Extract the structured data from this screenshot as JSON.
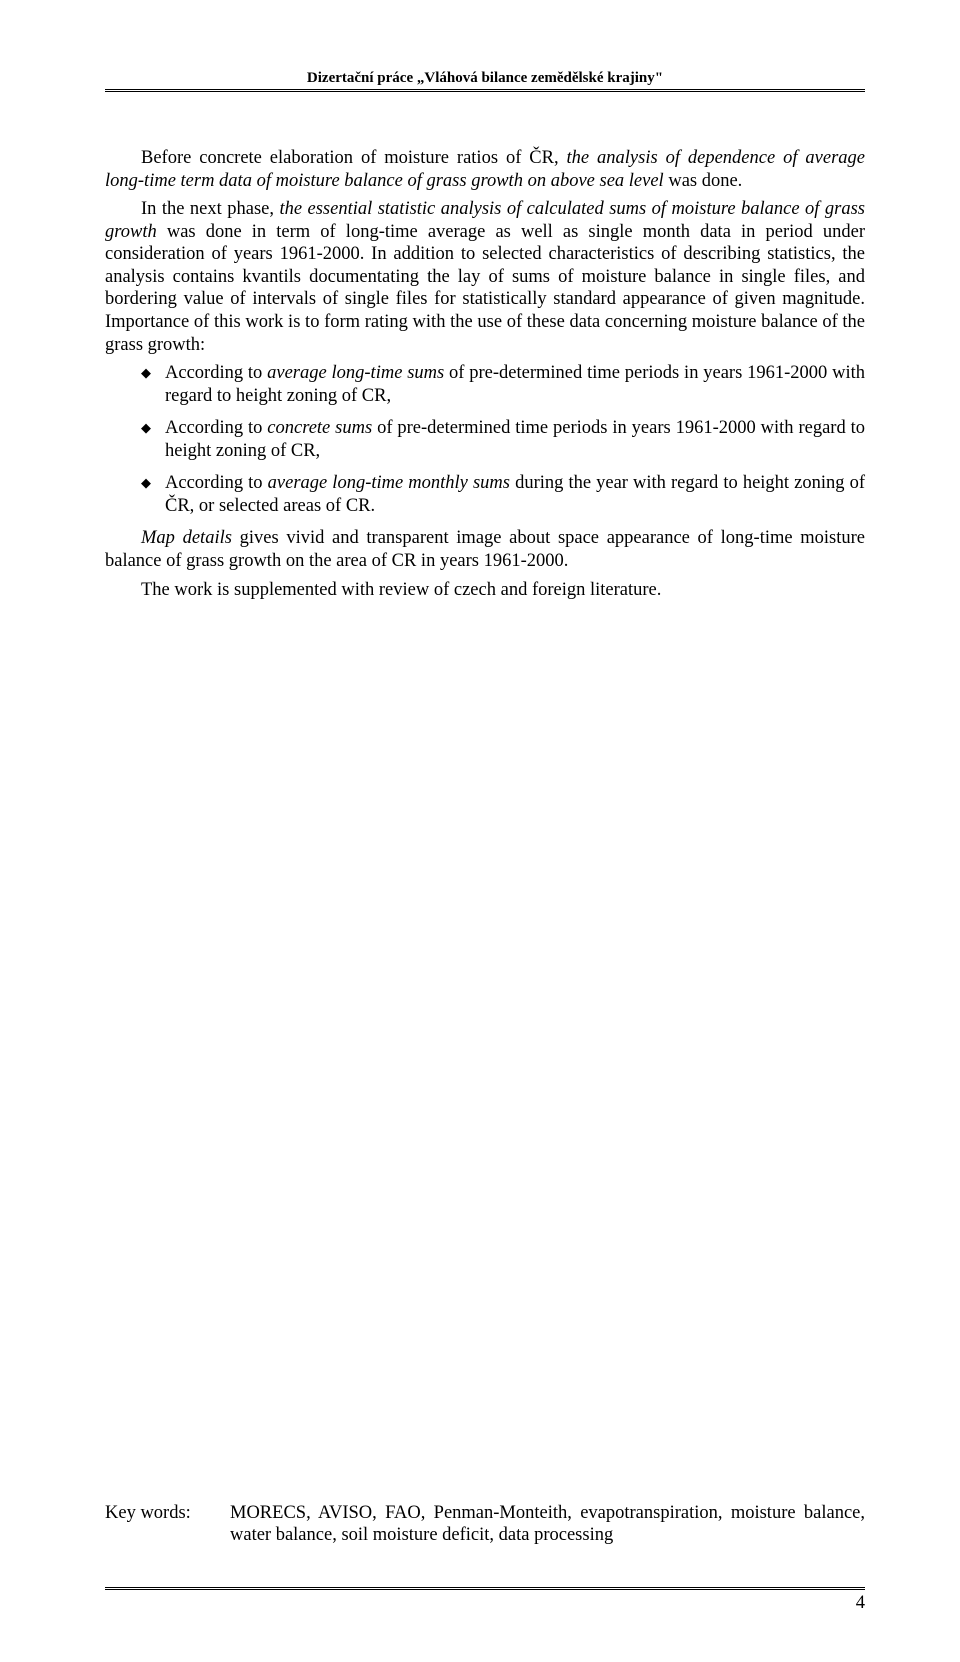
{
  "header": {
    "title": "Dizertační práce „Vláhová bilance zemědělské krajiny\""
  },
  "paragraphs": {
    "p1": {
      "prefix": "Before concrete elaboration of moisture ratios of ČR, ",
      "italic": "the analysis of dependence of average long-time term data of moisture balance of grass growth on above sea level",
      "suffix": " was done."
    },
    "p2": {
      "prefix": "In the next phase, ",
      "italic": "the essential statistic analysis of calculated sums of moisture balance of grass growth",
      "suffix": " was done in term of long-time average as well as single month data in period under consideration of years 1961-2000. In addition to selected characteristics of describing statistics, the analysis contains kvantils documentating the lay of sums of moisture balance in single files, and bordering value of intervals of single files for statistically standard appearance of given magnitude. Importance of this work is to form rating with the use of these data concerning moisture balance of the grass growth:"
    },
    "p3": {
      "italic": "Map details",
      "suffix": " gives vivid and transparent image about space appearance of long-time moisture balance of grass growth on the area of CR in years 1961-2000."
    },
    "p4": "The work is supplemented with review of czech and foreign literature."
  },
  "bullets": [
    {
      "prefix": "According to ",
      "italic": "average long-time sums",
      "suffix": " of pre-determined time periods in years 1961-2000 with regard to height zoning of CR,"
    },
    {
      "prefix": "According to ",
      "italic": "concrete sums",
      "suffix": " of pre-determined time periods in years 1961-2000 with regard to height zoning of CR,"
    },
    {
      "prefix": "According to ",
      "italic": "average long-time monthly sums",
      "suffix": " during the year with regard to height zoning of ČR, or selected areas of CR."
    }
  ],
  "keywords": {
    "label": "Key words:",
    "text": "MORECS, AVISO, FAO, Penman-Monteith, evapotranspiration, moisture balance, water balance, soil moisture deficit, data processing"
  },
  "pageNumber": "4",
  "colors": {
    "text": "#000000",
    "background": "#ffffff"
  },
  "typography": {
    "body_fontsize": 18.5,
    "header_fontsize": 15,
    "font_family": "Times New Roman"
  }
}
